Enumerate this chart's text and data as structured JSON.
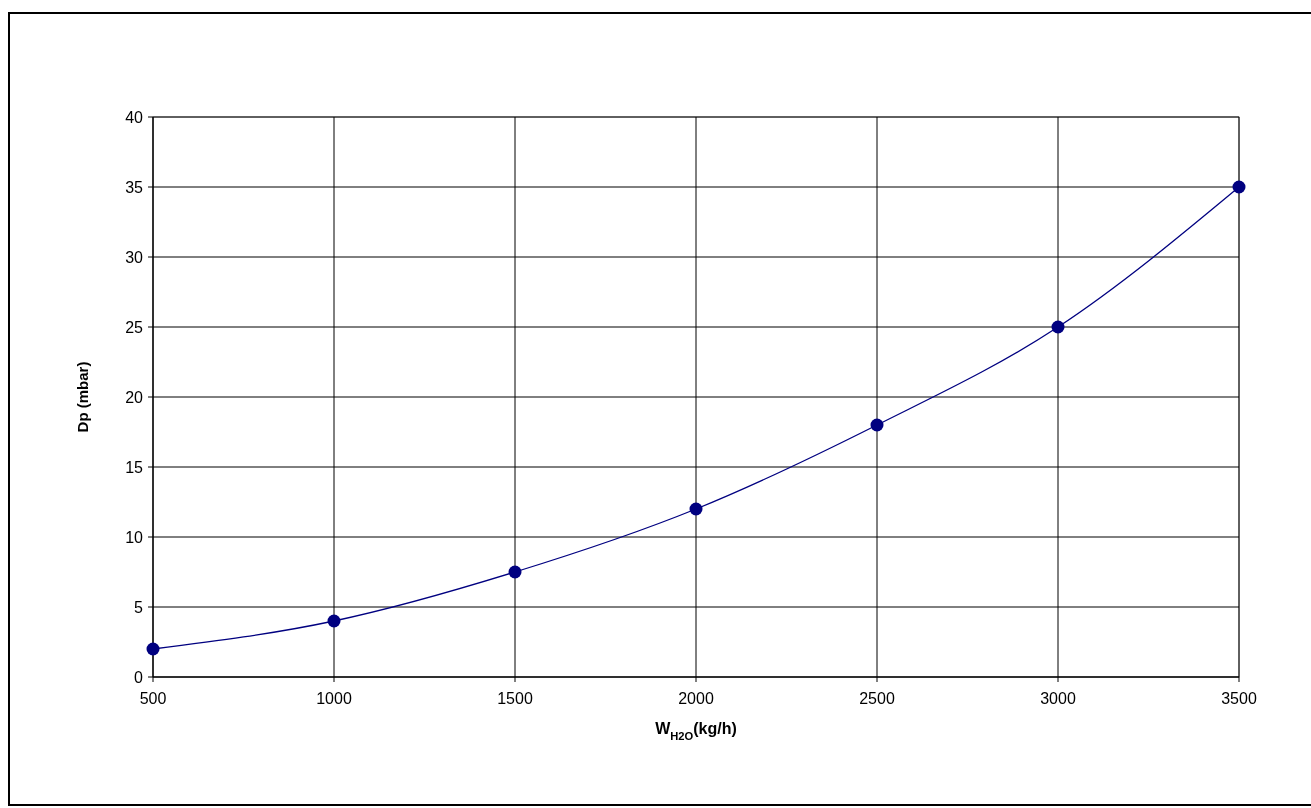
{
  "chart_data": {
    "type": "line",
    "xlabel": "W$_{H2O}$(kg/h)",
    "ylabel": "Dp (mbar)",
    "x": [
      500,
      1000,
      1500,
      2000,
      2500,
      3000,
      3500
    ],
    "series": [
      {
        "color": "#000080",
        "values": [
          2,
          4,
          7.5,
          12,
          18,
          25,
          35
        ]
      }
    ],
    "xlim": [
      500,
      3500
    ],
    "xticks": [
      500,
      1000,
      1500,
      2000,
      2500,
      3000,
      3500
    ],
    "ylim": [
      0,
      40
    ],
    "yticks": [
      0,
      5,
      10,
      15,
      20,
      25,
      30,
      35,
      40
    ],
    "grid": true,
    "marker": "circle",
    "line_style": "solid"
  }
}
